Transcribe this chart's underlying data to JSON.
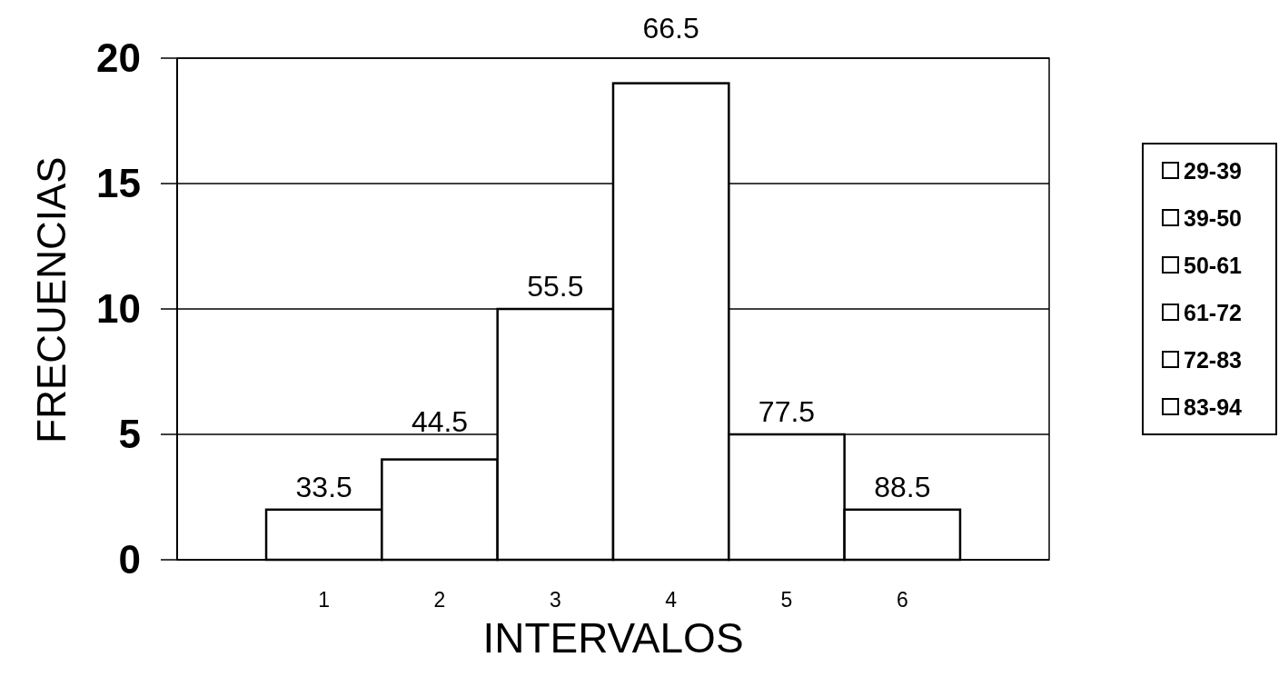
{
  "chart_data": {
    "type": "bar",
    "xlabel": "INTERVALOS",
    "ylabel": "FRECUENCIAS",
    "categories": [
      "1",
      "2",
      "3",
      "4",
      "5",
      "6"
    ],
    "stacked": true,
    "series": [
      {
        "name": "29-39",
        "color": "#ffffff",
        "values": [
          2,
          null,
          null,
          null,
          null,
          null
        ]
      },
      {
        "name": "39-50",
        "color": "#ffffff",
        "values": [
          null,
          4,
          null,
          null,
          null,
          null
        ]
      },
      {
        "name": "50-61",
        "color": "#ffffff",
        "values": [
          null,
          null,
          10,
          null,
          null,
          null
        ]
      },
      {
        "name": "61-72",
        "color": "#ffffff",
        "values": [
          null,
          null,
          null,
          19,
          null,
          null
        ]
      },
      {
        "name": "72-83",
        "color": "#ffffff",
        "values": [
          null,
          null,
          null,
          null,
          5,
          null
        ]
      },
      {
        "name": "83-94",
        "color": "#ffffff",
        "values": [
          null,
          null,
          null,
          null,
          null,
          2
        ]
      }
    ],
    "annotations": [
      {
        "text": "33.5",
        "x": "1",
        "y": 2
      },
      {
        "text": "44.5",
        "x": "2",
        "y": 4
      },
      {
        "text": "55.5",
        "x": "3",
        "y": 10
      },
      {
        "text": "66.5",
        "x": "4",
        "y": 19
      },
      {
        "text": "77.5",
        "x": "5",
        "y": 5
      },
      {
        "text": "88.5",
        "x": "6",
        "y": 2
      }
    ],
    "ylim": [
      0,
      20
    ],
    "yticks": [
      0,
      5,
      10,
      15,
      20
    ],
    "grid": "y",
    "legend": "right"
  }
}
